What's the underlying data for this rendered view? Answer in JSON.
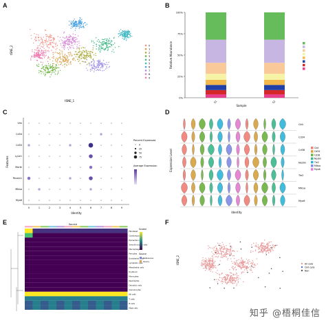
{
  "panels": {
    "a": {
      "label": "A",
      "xlabel": "tSNE_1",
      "ylabel": "tSNE_2",
      "legend": [
        "0",
        "1",
        "2",
        "3",
        "4",
        "5",
        "6",
        "7",
        "8",
        "9"
      ],
      "colors": [
        "#f08f85",
        "#d9a14c",
        "#a8a83a",
        "#6cb43f",
        "#3fb784",
        "#3bb7c2",
        "#4aa3e4",
        "#9a8ce8",
        "#d57fd6",
        "#f07ab0"
      ]
    },
    "b": {
      "label": "B",
      "ylabel": "Relative Abundance",
      "xlabel": "Sample",
      "yticks": [
        "0%",
        "25%",
        "50%",
        "75%",
        "100%"
      ],
      "samples": [
        "S1",
        "S2"
      ],
      "segments": [
        {
          "color": "#e83e8c",
          "S1": 4,
          "S2": 4
        },
        {
          "color": "#d62728",
          "S1": 5,
          "S2": 5
        },
        {
          "color": "#2040a8",
          "S1": 6,
          "S2": 6
        },
        {
          "color": "#f2b84b",
          "S1": 6,
          "S2": 6
        },
        {
          "color": "#f7f3a6",
          "S1": 7,
          "S2": 7
        },
        {
          "color": "#f9c99a",
          "S1": 13,
          "S2": 13
        },
        {
          "color": "#c8b6e2",
          "S1": 27,
          "S2": 27
        },
        {
          "color": "#66bb5a",
          "S1": 32,
          "S2": 32
        }
      ],
      "legend_colors": [
        "#66bb5a",
        "#c8b6e2",
        "#f9c99a",
        "#f7f3a6",
        "#f2b84b",
        "#2040a8",
        "#d62728",
        "#e83e8c"
      ]
    },
    "c": {
      "label": "C",
      "xlabel": "Identity",
      "ylabel": "Features",
      "features": [
        "Vim",
        "Cd34",
        "Cd33",
        "Lyve1",
        "Mertk",
        "Pecam1",
        "Mlksa",
        "Myo6"
      ],
      "identities": [
        "0",
        "1",
        "2",
        "3",
        "4",
        "5",
        "6",
        "7",
        "8",
        "9"
      ],
      "legend_title_pct": "Percent Expressed",
      "legend_pct": [
        "0",
        "25",
        "50",
        "75"
      ],
      "legend_title_avg": "Average Expression",
      "dot_sizes": [
        [
          1,
          1,
          1,
          1,
          1,
          1,
          1,
          1,
          1,
          1
        ],
        [
          1,
          1,
          1,
          1,
          1,
          1,
          1,
          2,
          1,
          1
        ],
        [
          2,
          1,
          1,
          1,
          2,
          1,
          5,
          1,
          1,
          1
        ],
        [
          1,
          1,
          1,
          1,
          1,
          1,
          4,
          1,
          1,
          1
        ],
        [
          1,
          1,
          1,
          1,
          1,
          1,
          3,
          1,
          1,
          1
        ],
        [
          3,
          1,
          1,
          1,
          2,
          1,
          4,
          1,
          1,
          1
        ],
        [
          1,
          2,
          1,
          1,
          1,
          1,
          2,
          1,
          1,
          1
        ],
        [
          1,
          1,
          1,
          1,
          1,
          1,
          1,
          1,
          1,
          1
        ]
      ]
    },
    "d": {
      "label": "D",
      "xlabel": "Identity",
      "ylabel": "Expression Level",
      "rows": [
        "Ckit",
        "Cd34",
        "Cd38",
        "Nestin",
        "Tie2",
        "Mlksa",
        "Myo6"
      ],
      "legend": [
        "Ckit",
        "Cd34",
        "Cd38",
        "Nestin",
        "Tie2",
        "Mlksa",
        "Myo6"
      ],
      "colors": [
        "#f07e74",
        "#d7a13c",
        "#6cb23e",
        "#39b98b",
        "#2fb4d6",
        "#7f8be6",
        "#e27cd0"
      ]
    },
    "e": {
      "label": "E",
      "title": "Source",
      "rows": [
        "Fibroblast",
        "Cardiomyocyte",
        "Epicardial cells",
        "Smooth muscle cells",
        "Macrophages",
        "Pericytes",
        "Endothelial cells",
        "Lymphatic cells",
        "Mesothelial cells",
        "Erythroid",
        "Monocytes",
        "Neutrophils",
        "Dendritic cells",
        "Granulocytes",
        "Nk cells",
        "T cells",
        "B cells",
        "Mast cells"
      ],
      "legend_title": "Scaled",
      "legend_title2": "Source",
      "legend_source": [
        "Reference",
        "Query"
      ]
    },
    "f": {
      "label": "F",
      "xlabel": "tSNE_1",
      "ylabel": "tSNE_2",
      "legend": [
        "All cells",
        "Ckit cells",
        "Non"
      ]
    }
  },
  "watermark": "知乎 @梧桐佳信"
}
